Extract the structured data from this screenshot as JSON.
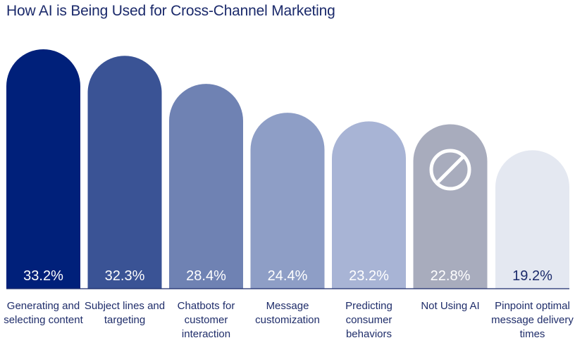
{
  "chart_data": {
    "type": "bar",
    "title": "How AI is Being Used for Cross-Channel Marketing",
    "categories": [
      "Generating and selecting content",
      "Subject lines and targeting",
      "Chatbots for customer interaction",
      "Message customization",
      "Predicting consumer behaviors",
      "Not Using AI",
      "Pinpoint optimal message delivery times"
    ],
    "values": [
      33.2,
      32.3,
      28.4,
      24.4,
      23.2,
      22.8,
      19.2
    ],
    "value_labels": [
      "33.2%",
      "32.3%",
      "28.4%",
      "24.4%",
      "23.2%",
      "22.8%",
      "19.2%"
    ],
    "unit": "%",
    "colors": [
      "#00207a",
      "#3a5395",
      "#6f82b3",
      "#8e9ec6",
      "#a8b4d5",
      "#a8acbd",
      "#e4e8f1"
    ],
    "value_label_colors": [
      "#ffffff",
      "#ffffff",
      "#ffffff",
      "#ffffff",
      "#ffffff",
      "#ffffff",
      "#1b2a6b"
    ],
    "icons": {
      "not_using_ai": "prohibited-icon"
    },
    "ylim": [
      0,
      35
    ],
    "grid": false,
    "legend": "none"
  }
}
